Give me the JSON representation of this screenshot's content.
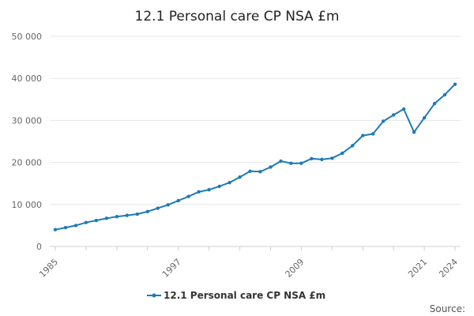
{
  "chart_data": {
    "type": "line",
    "title": "12.1 Personal care CP NSA £m",
    "xlabel": "",
    "ylabel": "",
    "x": [
      1985,
      1986,
      1987,
      1988,
      1989,
      1990,
      1991,
      1992,
      1993,
      1994,
      1995,
      1996,
      1997,
      1998,
      1999,
      2000,
      2001,
      2002,
      2003,
      2004,
      2005,
      2006,
      2007,
      2008,
      2009,
      2010,
      2011,
      2012,
      2013,
      2014,
      2015,
      2016,
      2017,
      2018,
      2019,
      2020,
      2021,
      2022,
      2023,
      2024
    ],
    "series": [
      {
        "name": "12.1 Personal care CP NSA £m",
        "color": "#1f7ab8",
        "values": [
          4000,
          4500,
          5000,
          5700,
          6200,
          6700,
          7100,
          7400,
          7700,
          8300,
          9100,
          9900,
          10900,
          11900,
          13000,
          13500,
          14300,
          15200,
          16500,
          17900,
          17800,
          18900,
          20300,
          19800,
          19800,
          20900,
          20700,
          21000,
          22200,
          24000,
          26400,
          26800,
          29800,
          31300,
          32700,
          27200,
          30600,
          34000,
          36100,
          38600
        ]
      }
    ],
    "xticks": [
      "1985",
      "1997",
      "2009",
      "2021",
      "2024"
    ],
    "yticks": [
      "0",
      "10 000",
      "20 000",
      "30 000",
      "40 000",
      "50 000"
    ],
    "ylim": [
      0,
      50000
    ],
    "grid": true,
    "legend_position": "bottom-center"
  },
  "source_label": "Source:"
}
